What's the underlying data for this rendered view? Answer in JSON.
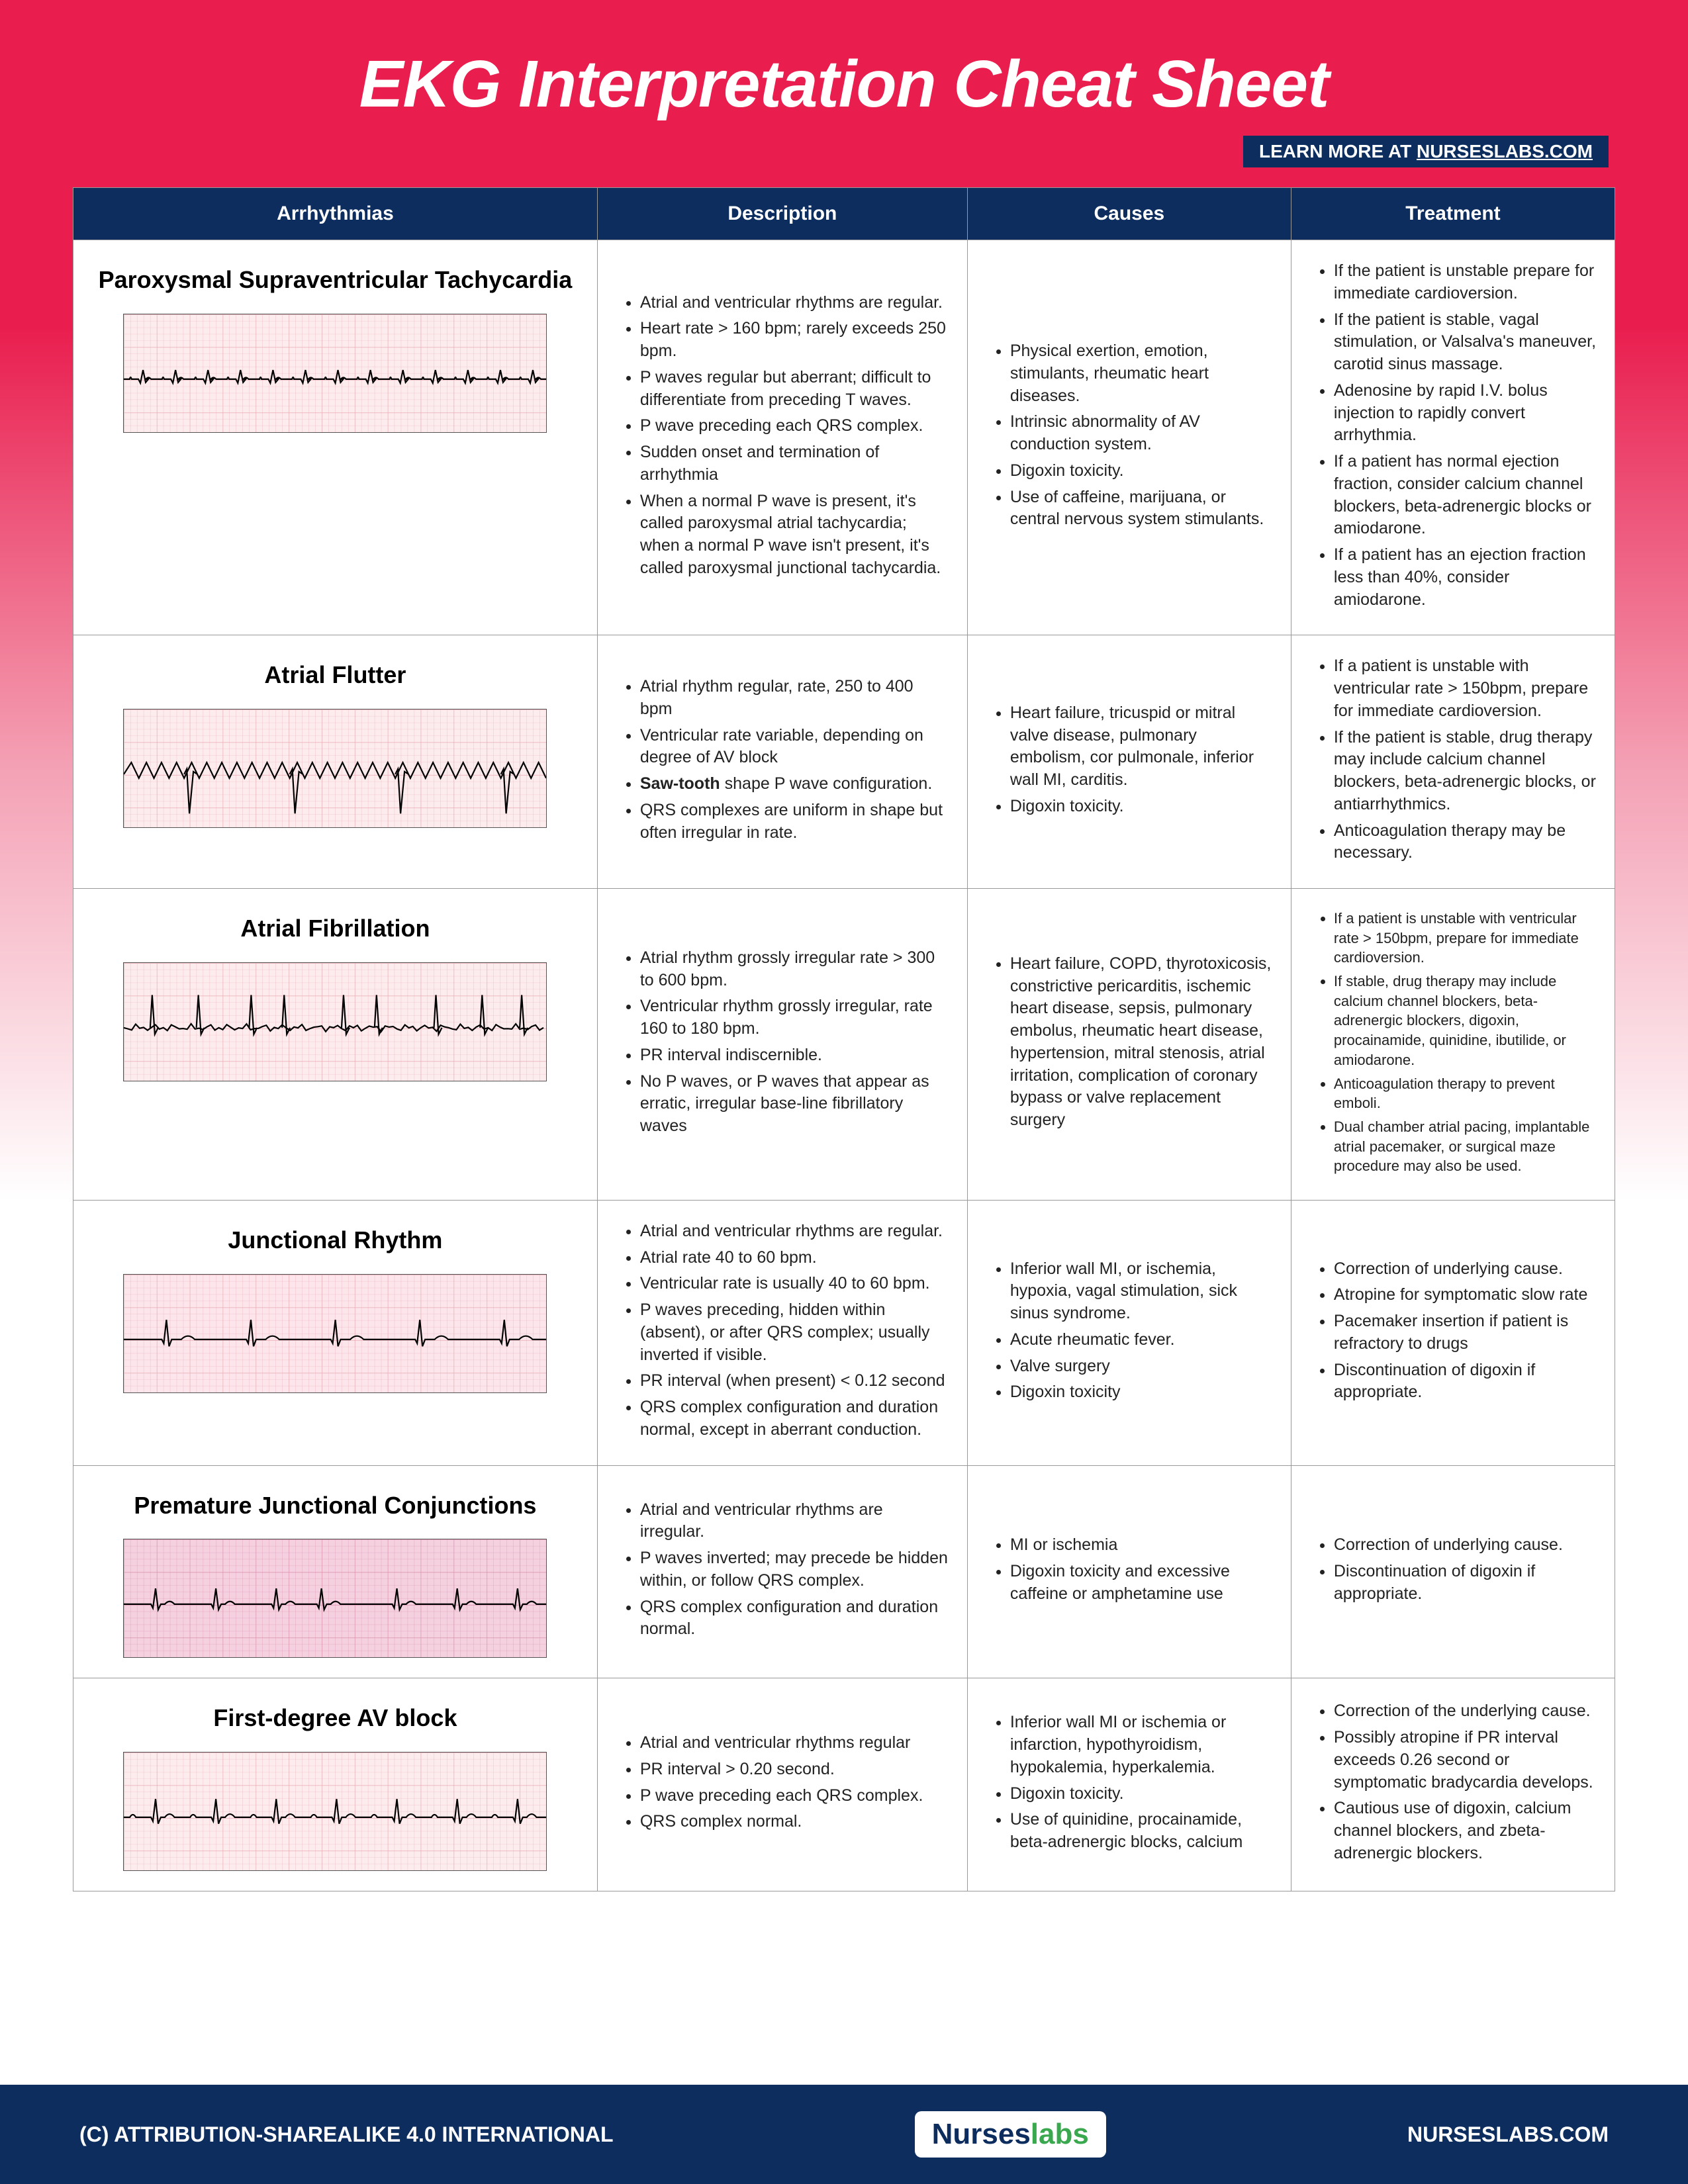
{
  "title": "EKG Interpretation Cheat Sheet",
  "learn_more_prefix": "LEARN MORE AT ",
  "learn_more_site": "NURSESLABS.COM",
  "columns": [
    "Arrhythmias",
    "Description",
    "Causes",
    "Treatment"
  ],
  "colors": {
    "header_bg": "#0c2d5e",
    "accent_red": "#e91e4f",
    "grid_pink": "#f7c9cf",
    "grid_major": "#e28a94",
    "wave": "#000000"
  },
  "footer": {
    "license": "(C) ATTRIBUTION-SHAREALIKE 4.0 INTERNATIONAL",
    "logo_a": "Nurses",
    "logo_b": "labs",
    "site": "NURSESLABS.COM"
  },
  "rows": [
    {
      "name": "Paroxysmal Supraventricular Tachycardia",
      "ekg": {
        "bg": "#fdecee",
        "grid": "#e8aab2",
        "beats": 13,
        "amp": 14,
        "extraP": true
      },
      "description": [
        "Atrial and ventricular rhythms are regular.",
        "Heart rate > 160 bpm; rarely exceeds 250 bpm.",
        "P waves regular but aberrant; difficult to differentiate from preceding T waves.",
        "P wave preceding each QRS complex.",
        "Sudden onset and termination of arrhythmia",
        "When a normal P wave is present, it's called paroxysmal atrial tachycardia; when a normal P wave isn't present, it's called paroxysmal junctional tachycardia."
      ],
      "causes": [
        "Physical exertion, emotion, stimulants, rheumatic heart diseases.",
        "Intrinsic abnormality of AV conduction system.",
        "Digoxin toxicity.",
        "Use of caffeine, marijuana, or central nervous system stimulants."
      ],
      "treatment": [
        "If the patient is unstable prepare for immediate cardioversion.",
        "If the patient is stable, vagal stimulation, or Valsalva's maneuver, carotid sinus massage.",
        "Adenosine by rapid I.V. bolus injection to rapidly convert arrhythmia.",
        "If a patient has normal ejection fraction, consider calcium channel blockers, beta-adrenergic blocks or amiodarone.",
        "If a patient has an ejection fraction less than 40%, consider amiodarone."
      ]
    },
    {
      "name": "Atrial Flutter",
      "ekg": {
        "bg": "#fdecee",
        "grid": "#e8aab2",
        "flutter": true
      },
      "description": [
        "Atrial rhythm regular, rate, 250 to 400 bpm",
        "Ventricular rate variable, depending on degree of AV block",
        "<b>Saw-tooth</b> shape P wave configuration.",
        "QRS complexes are uniform in shape but often irregular in rate."
      ],
      "causes": [
        "Heart failure, tricuspid or mitral valve disease, pulmonary embolism, cor pulmonale, inferior wall MI, carditis.",
        "Digoxin toxicity."
      ],
      "treatment": [
        "If a patient is unstable with ventricular rate > 150bpm, prepare for immediate cardioversion.",
        "If the patient is stable, drug therapy may include calcium channel blockers, beta-adrenergic blocks, or antiarrhythmics.",
        "Anticoagulation therapy may be necessary."
      ]
    },
    {
      "name": "Atrial Fibrillation",
      "small_treatment": true,
      "ekg": {
        "bg": "#fdecee",
        "grid": "#e8aab2",
        "afib": true
      },
      "description": [
        "Atrial rhythm grossly irregular rate > 300 to 600 bpm.",
        "Ventricular rhythm grossly irregular, rate 160 to 180 bpm.",
        "PR interval indiscernible.",
        "No P waves, or P waves that appear as erratic, irregular base-line fibrillatory waves"
      ],
      "causes": [
        "Heart failure, COPD, thyrotoxicosis, constrictive pericarditis, ischemic heart disease, sepsis, pulmonary embolus, rheumatic heart disease, hypertension, mitral stenosis, atrial irritation, complication of coronary bypass or valve replacement surgery"
      ],
      "treatment": [
        "If a patient is unstable with ventricular rate > 150bpm, prepare for immediate cardioversion.",
        "If stable, drug therapy may include calcium channel blockers, beta-adrenergic blockers, digoxin, procainamide, quinidine, ibutilide, or amiodarone.",
        "Anticoagulation therapy to prevent emboli.",
        "Dual chamber atrial pacing, implantable atrial pacemaker, or surgical maze procedure may also be used."
      ]
    },
    {
      "name": "Junctional Rhythm",
      "ekg": {
        "bg": "#fce5eb",
        "grid": "#e8aab2",
        "beats": 5,
        "amp": 30
      },
      "description": [
        "Atrial and ventricular rhythms are regular.",
        "Atrial rate 40 to 60 bpm.",
        "Ventricular rate is usually 40 to 60 bpm.",
        "P waves preceding, hidden within (absent), or after QRS complex; usually inverted if visible.",
        "PR interval (when present) < 0.12 second",
        "QRS complex configuration and duration normal, except in aberrant conduction."
      ],
      "causes": [
        "Inferior wall MI, or ischemia, hypoxia, vagal stimulation, sick sinus syndrome.",
        "Acute rheumatic fever.",
        "Valve surgery",
        "Digoxin toxicity"
      ],
      "treatment": [
        "Correction of underlying cause.",
        "Atropine for symptomatic slow rate",
        "Pacemaker insertion if patient is refractory to drugs",
        "Discontinuation of digoxin if appropriate."
      ]
    },
    {
      "name": "Premature Junctional Conjunctions",
      "ekg": {
        "bg": "#f5d0df",
        "grid": "#d890ac",
        "beats": 7,
        "amp": 24,
        "premature": 3
      },
      "description": [
        "Atrial and ventricular rhythms are irregular.",
        "P waves inverted; may precede be hidden within, or follow QRS complex.",
        "QRS complex configuration and duration normal."
      ],
      "causes": [
        "MI or ischemia",
        "Digoxin toxicity and excessive caffeine or amphetamine use"
      ],
      "treatment": [
        "Correction of underlying cause.",
        "Discontinuation of digoxin if appropriate."
      ]
    },
    {
      "name": "First-degree AV block",
      "ekg": {
        "bg": "#fdecee",
        "grid": "#e8aab2",
        "beats": 7,
        "amp": 28,
        "longPR": true
      },
      "description": [
        "Atrial and ventricular rhythms regular",
        "PR interval > 0.20 second.",
        "P wave preceding each QRS complex.",
        "QRS complex normal."
      ],
      "causes": [
        "Inferior wall MI or ischemia or infarction, hypothyroidism, hypokalemia, hyperkalemia.",
        "Digoxin toxicity.",
        "Use of quinidine, procainamide, beta-adrenergic blocks, calcium"
      ],
      "treatment": [
        "Correction of the underlying cause.",
        "Possibly atropine if PR interval exceeds 0.26 second or symptomatic bradycardia develops.",
        "Cautious use of digoxin, calcium channel blockers, and zbeta-adrenergic blockers."
      ]
    }
  ]
}
